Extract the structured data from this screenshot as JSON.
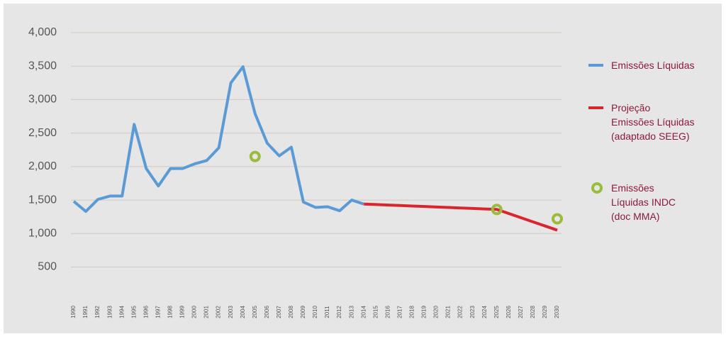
{
  "chart_data": {
    "type": "line",
    "categories": [
      "1990",
      "1991",
      "1992",
      "1993",
      "1994",
      "1995",
      "1996",
      "1997",
      "1998",
      "1999",
      "2000",
      "2001",
      "2002",
      "2003",
      "2004",
      "2005",
      "2006",
      "2007",
      "2008",
      "2009",
      "2010",
      "2011",
      "2012",
      "2013",
      "2014",
      "2015",
      "2016",
      "2017",
      "2018",
      "2019",
      "2020",
      "2021",
      "2022",
      "2023",
      "2024",
      "2025",
      "2026",
      "2027",
      "2028",
      "2029",
      "2030"
    ],
    "series": [
      {
        "name": "Emissões Líquidas",
        "color": "#5b9bd5",
        "style": "line",
        "values": [
          1480,
          1330,
          1510,
          1560,
          1560,
          2630,
          1970,
          1710,
          1970,
          1970,
          2040,
          2090,
          2280,
          3250,
          3490,
          2790,
          2350,
          2160,
          2290,
          1470,
          1390,
          1400,
          1340,
          1500,
          1440,
          null,
          null,
          null,
          null,
          null,
          null,
          null,
          null,
          null,
          null,
          null,
          null,
          null,
          null,
          null,
          null
        ]
      },
      {
        "name": "Projeção\nEmissões Líquidas\n(adaptado SEEG)",
        "color": "#d9262e",
        "style": "line",
        "values": [
          null,
          null,
          null,
          null,
          null,
          null,
          null,
          null,
          null,
          null,
          null,
          null,
          null,
          null,
          null,
          null,
          null,
          null,
          null,
          null,
          null,
          null,
          null,
          null,
          1440,
          1433,
          1425,
          1418,
          1411,
          1404,
          1396,
          1389,
          1382,
          1375,
          1367,
          1360,
          1298,
          1236,
          1174,
          1112,
          1050
        ]
      },
      {
        "name": "Emissões\nLíquidas INDC\n(doc MMA)",
        "color": "#9bbb3b",
        "style": "ring",
        "values": [
          null,
          null,
          null,
          null,
          null,
          null,
          null,
          null,
          null,
          null,
          null,
          null,
          null,
          null,
          null,
          2150,
          null,
          null,
          null,
          null,
          null,
          null,
          null,
          null,
          null,
          null,
          null,
          null,
          null,
          null,
          null,
          null,
          null,
          null,
          null,
          1360,
          null,
          null,
          null,
          null,
          1220
        ]
      }
    ],
    "ylim": [
      0,
      4000
    ],
    "yticks": [
      500,
      {
        "value": 1000,
        "label": "1,000"
      },
      {
        "value": 1500,
        "label": "1,500"
      },
      {
        "value": 2000,
        "label": "2,000"
      },
      {
        "value": 2500,
        "label": "2,500"
      },
      {
        "value": 3000,
        "label": "3,000"
      },
      {
        "value": 3500,
        "label": "3,500"
      },
      {
        "value": 4000,
        "label": "4,000"
      }
    ],
    "grid": true
  }
}
